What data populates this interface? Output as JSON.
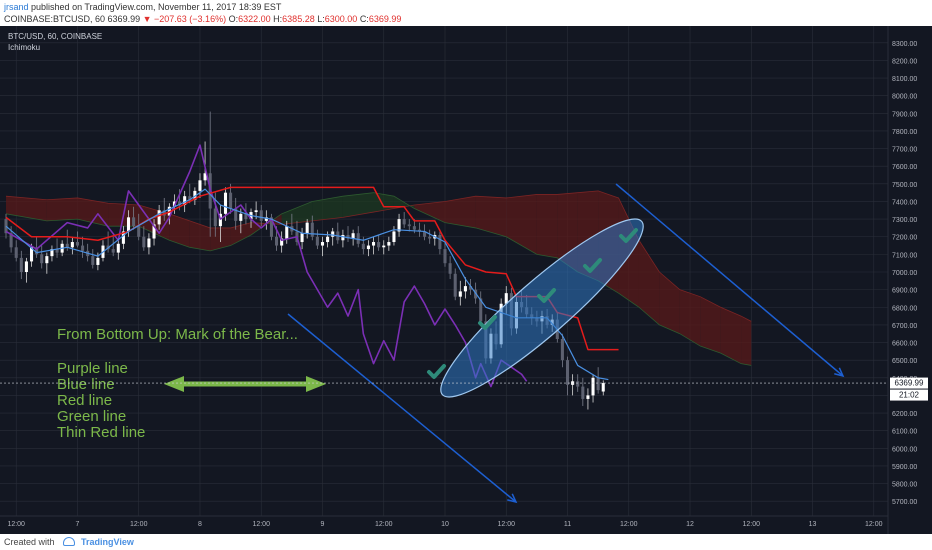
{
  "header": {
    "author": "jrsand",
    "published_text": "published on TradingView.com, November 11, 2017 18:39 EST",
    "symbol": "COINBASE:BTCUSD, 60",
    "last": "6369.99",
    "change": "▼ −207.63 (−3.16%)",
    "open_label": "O:",
    "open_value": "6322.00",
    "high_label": "H:",
    "high_value": "6385.28",
    "low_label": "L:",
    "low_value": "6300.00",
    "close_label": "C:",
    "close_value": "6369.99"
  },
  "legend": {
    "symbol_line": "BTC/USD, 60, COINBASE",
    "indicator": "Ichimoku"
  },
  "annotations": {
    "title": "From Bottom Up: Mark of the Bear...",
    "lines": [
      "Purple line",
      "Blue line",
      "Red line",
      "Green line",
      "Thin Red line"
    ]
  },
  "price_tag": {
    "value": "6369.99",
    "countdown": "21:02"
  },
  "footer": {
    "created_with": "Created with",
    "brand": "TradingView"
  },
  "colors": {
    "background": "#131722",
    "grid": "#2a2e39",
    "tenkan": "#4a90e2",
    "kijun": "#e41c1c",
    "chikou": "#7b2fb5",
    "cloud_bear": "#5a1a1a",
    "cloud_bull": "#1e3a22",
    "annotation_text": "#7cb84a",
    "arrow": "#1d5fd1",
    "ellipse_fill": "#2f78c4",
    "check": "#2e8b7a"
  },
  "chart_data": {
    "type": "candlestick",
    "title": "BTC/USD, 60, COINBASE",
    "indicator": "Ichimoku",
    "xlabel": "",
    "ylabel": "",
    "ylim": [
      5650,
      8350
    ],
    "y_ticks": [
      "8300.00",
      "8200.00",
      "8100.00",
      "8000.00",
      "7900.00",
      "7800.00",
      "7700.00",
      "7600.00",
      "7500.00",
      "7400.00",
      "7300.00",
      "7200.00",
      "7100.00",
      "7000.00",
      "6900.00",
      "6800.00",
      "6700.00",
      "6600.00",
      "6500.00",
      "6400.00",
      "6300.00",
      "6200.00",
      "6100.00",
      "6000.00",
      "5900.00",
      "5800.00",
      "5700.00"
    ],
    "x_ticks": [
      {
        "hour": 0,
        "label": "12:00"
      },
      {
        "hour": 12,
        "label": "7"
      },
      {
        "hour": 24,
        "label": "12:00"
      },
      {
        "hour": 36,
        "label": "8"
      },
      {
        "hour": 48,
        "label": "12:00"
      },
      {
        "hour": 60,
        "label": "9"
      },
      {
        "hour": 72,
        "label": "12:00"
      },
      {
        "hour": 84,
        "label": "10"
      },
      {
        "hour": 96,
        "label": "12:00"
      },
      {
        "hour": 108,
        "label": "11"
      },
      {
        "hour": 120,
        "label": "12:00"
      },
      {
        "hour": 132,
        "label": "12"
      },
      {
        "hour": 144,
        "label": "12:00"
      },
      {
        "hour": 156,
        "label": "13"
      },
      {
        "hour": 168,
        "label": "12:00"
      }
    ],
    "x_domain": [
      -2,
      170
    ],
    "last_price": 6369.99,
    "ohlc": [
      [
        -2,
        7300,
        7330,
        7190,
        7220
      ],
      [
        -1,
        7220,
        7260,
        7110,
        7140
      ],
      [
        0,
        7140,
        7180,
        7060,
        7080
      ],
      [
        1,
        7080,
        7120,
        6960,
        7000
      ],
      [
        2,
        7000,
        7080,
        6940,
        7060
      ],
      [
        3,
        7060,
        7160,
        7030,
        7140
      ],
      [
        4,
        7140,
        7200,
        7080,
        7100
      ],
      [
        5,
        7100,
        7150,
        7020,
        7050
      ],
      [
        6,
        7050,
        7110,
        6990,
        7090
      ],
      [
        7,
        7090,
        7150,
        7060,
        7130
      ],
      [
        8,
        7130,
        7190,
        7080,
        7110
      ],
      [
        9,
        7110,
        7180,
        7090,
        7160
      ],
      [
        10,
        7160,
        7240,
        7120,
        7140
      ],
      [
        11,
        7140,
        7200,
        7100,
        7170
      ],
      [
        12,
        7170,
        7230,
        7140,
        7150
      ],
      [
        13,
        7150,
        7200,
        7080,
        7120
      ],
      [
        14,
        7120,
        7160,
        7060,
        7090
      ],
      [
        15,
        7090,
        7130,
        7020,
        7040
      ],
      [
        16,
        7040,
        7110,
        7010,
        7080
      ],
      [
        17,
        7080,
        7180,
        7060,
        7150
      ],
      [
        18,
        7150,
        7230,
        7110,
        7130
      ],
      [
        19,
        7130,
        7200,
        7090,
        7110
      ],
      [
        20,
        7110,
        7180,
        7070,
        7160
      ],
      [
        21,
        7160,
        7260,
        7130,
        7230
      ],
      [
        22,
        7230,
        7350,
        7200,
        7310
      ],
      [
        23,
        7310,
        7370,
        7240,
        7260
      ],
      [
        24,
        7260,
        7330,
        7180,
        7200
      ],
      [
        25,
        7200,
        7260,
        7120,
        7140
      ],
      [
        26,
        7140,
        7220,
        7100,
        7190
      ],
      [
        27,
        7190,
        7300,
        7150,
        7270
      ],
      [
        28,
        7270,
        7380,
        7240,
        7350
      ],
      [
        29,
        7350,
        7420,
        7290,
        7320
      ],
      [
        30,
        7320,
        7390,
        7270,
        7370
      ],
      [
        31,
        7370,
        7440,
        7330,
        7400
      ],
      [
        32,
        7400,
        7470,
        7350,
        7380
      ],
      [
        33,
        7380,
        7460,
        7340,
        7430
      ],
      [
        34,
        7430,
        7500,
        7390,
        7410
      ],
      [
        35,
        7410,
        7480,
        7380,
        7460
      ],
      [
        36,
        7460,
        7560,
        7420,
        7520
      ],
      [
        37,
        7520,
        7740,
        7490,
        7560
      ],
      [
        38,
        7560,
        7910,
        7200,
        7360
      ],
      [
        39,
        7360,
        7450,
        7200,
        7260
      ],
      [
        40,
        7260,
        7380,
        7170,
        7330
      ],
      [
        41,
        7330,
        7480,
        7290,
        7450
      ],
      [
        42,
        7450,
        7500,
        7330,
        7360
      ],
      [
        43,
        7360,
        7420,
        7240,
        7290
      ],
      [
        44,
        7290,
        7360,
        7220,
        7330
      ],
      [
        45,
        7330,
        7390,
        7270,
        7300
      ],
      [
        46,
        7300,
        7360,
        7250,
        7340
      ],
      [
        47,
        7340,
        7400,
        7300,
        7350
      ],
      [
        48,
        7350,
        7380,
        7260,
        7290
      ],
      [
        49,
        7290,
        7350,
        7240,
        7310
      ],
      [
        50,
        7310,
        7330,
        7180,
        7200
      ],
      [
        51,
        7200,
        7260,
        7120,
        7150
      ],
      [
        52,
        7150,
        7230,
        7110,
        7190
      ],
      [
        53,
        7190,
        7290,
        7160,
        7260
      ],
      [
        54,
        7260,
        7330,
        7210,
        7230
      ],
      [
        55,
        7230,
        7290,
        7150,
        7170
      ],
      [
        56,
        7170,
        7250,
        7130,
        7220
      ],
      [
        57,
        7220,
        7300,
        7190,
        7280
      ],
      [
        58,
        7280,
        7320,
        7180,
        7200
      ],
      [
        59,
        7200,
        7240,
        7130,
        7150
      ],
      [
        60,
        7150,
        7200,
        7090,
        7170
      ],
      [
        61,
        7170,
        7230,
        7140,
        7200
      ],
      [
        62,
        7200,
        7250,
        7150,
        7230
      ],
      [
        63,
        7230,
        7280,
        7160,
        7180
      ],
      [
        64,
        7180,
        7240,
        7140,
        7210
      ],
      [
        65,
        7210,
        7260,
        7170,
        7190
      ],
      [
        66,
        7190,
        7240,
        7150,
        7220
      ],
      [
        67,
        7220,
        7260,
        7140,
        7160
      ],
      [
        68,
        7160,
        7200,
        7100,
        7130
      ],
      [
        69,
        7130,
        7180,
        7090,
        7150
      ],
      [
        70,
        7150,
        7200,
        7100,
        7170
      ],
      [
        71,
        7170,
        7210,
        7120,
        7140
      ],
      [
        72,
        7140,
        7180,
        7100,
        7150
      ],
      [
        73,
        7150,
        7200,
        7120,
        7170
      ],
      [
        74,
        7170,
        7260,
        7150,
        7230
      ],
      [
        75,
        7230,
        7330,
        7200,
        7300
      ],
      [
        76,
        7300,
        7340,
        7250,
        7270
      ],
      [
        77,
        7270,
        7300,
        7230,
        7260
      ],
      [
        78,
        7260,
        7300,
        7220,
        7240
      ],
      [
        79,
        7240,
        7280,
        7200,
        7230
      ],
      [
        80,
        7230,
        7270,
        7180,
        7200
      ],
      [
        81,
        7200,
        7240,
        7160,
        7190
      ],
      [
        82,
        7190,
        7230,
        7150,
        7210
      ],
      [
        83,
        7210,
        7240,
        7100,
        7130
      ],
      [
        84,
        7130,
        7170,
        7030,
        7050
      ],
      [
        85,
        7050,
        7090,
        6960,
        6990
      ],
      [
        86,
        6990,
        7020,
        6840,
        6860
      ],
      [
        87,
        6860,
        6950,
        6810,
        6890
      ],
      [
        88,
        6890,
        6970,
        6850,
        6920
      ],
      [
        89,
        6920,
        6960,
        6870,
        6900
      ],
      [
        90,
        6900,
        6940,
        6820,
        6850
      ],
      [
        91,
        6850,
        6890,
        6700,
        6720
      ],
      [
        92,
        6720,
        6760,
        6480,
        6510
      ],
      [
        93,
        6510,
        6680,
        6480,
        6650
      ],
      [
        94,
        6650,
        6720,
        6560,
        6590
      ],
      [
        95,
        6590,
        6850,
        6570,
        6820
      ],
      [
        96,
        6820,
        6920,
        6760,
        6880
      ],
      [
        97,
        6880,
        6910,
        6640,
        6680
      ],
      [
        98,
        6680,
        6860,
        6650,
        6830
      ],
      [
        99,
        6830,
        6900,
        6770,
        6800
      ],
      [
        100,
        6800,
        6870,
        6740,
        6760
      ],
      [
        101,
        6760,
        6800,
        6700,
        6740
      ],
      [
        102,
        6740,
        6780,
        6690,
        6720
      ],
      [
        103,
        6720,
        6780,
        6650,
        6750
      ],
      [
        104,
        6750,
        6790,
        6680,
        6700
      ],
      [
        105,
        6700,
        6760,
        6660,
        6730
      ],
      [
        106,
        6730,
        6770,
        6600,
        6620
      ],
      [
        107,
        6620,
        6650,
        6460,
        6500
      ],
      [
        108,
        6500,
        6520,
        6300,
        6360
      ],
      [
        109,
        6360,
        6420,
        6300,
        6380
      ],
      [
        110,
        6380,
        6420,
        6320,
        6350
      ],
      [
        111,
        6350,
        6400,
        6240,
        6280
      ],
      [
        112,
        6280,
        6340,
        6220,
        6300
      ],
      [
        113,
        6300,
        6420,
        6260,
        6400
      ],
      [
        114,
        6400,
        6460,
        6310,
        6330
      ],
      [
        115,
        6322,
        6385.28,
        6300,
        6369.99
      ]
    ],
    "tenkan": [
      [
        -2,
        7260
      ],
      [
        4,
        7110
      ],
      [
        10,
        7140
      ],
      [
        16,
        7090
      ],
      [
        22,
        7230
      ],
      [
        28,
        7330
      ],
      [
        34,
        7410
      ],
      [
        37,
        7470
      ],
      [
        40,
        7380
      ],
      [
        46,
        7320
      ],
      [
        50,
        7300
      ],
      [
        56,
        7220
      ],
      [
        62,
        7210
      ],
      [
        68,
        7180
      ],
      [
        74,
        7240
      ],
      [
        80,
        7230
      ],
      [
        84,
        7170
      ],
      [
        88,
        6960
      ],
      [
        92,
        6800
      ],
      [
        98,
        6740
      ],
      [
        104,
        6740
      ],
      [
        107,
        6640
      ],
      [
        110,
        6470
      ],
      [
        114,
        6400
      ],
      [
        116,
        6390
      ]
    ],
    "kijun": [
      [
        -2,
        7310
      ],
      [
        3,
        7200
      ],
      [
        10,
        7200
      ],
      [
        16,
        7180
      ],
      [
        22,
        7230
      ],
      [
        26,
        7300
      ],
      [
        30,
        7340
      ],
      [
        36,
        7430
      ],
      [
        42,
        7480
      ],
      [
        50,
        7480
      ],
      [
        62,
        7480
      ],
      [
        70,
        7480
      ],
      [
        72,
        7370
      ],
      [
        76,
        7370
      ],
      [
        78,
        7290
      ],
      [
        82,
        7290
      ],
      [
        84,
        7180
      ],
      [
        88,
        7040
      ],
      [
        92,
        7000
      ],
      [
        96,
        6990
      ],
      [
        98,
        6860
      ],
      [
        104,
        6860
      ],
      [
        106,
        6770
      ],
      [
        110,
        6740
      ],
      [
        112,
        6560
      ],
      [
        118,
        6560
      ]
    ],
    "chikou": [
      [
        -2,
        7230
      ],
      [
        4,
        7130
      ],
      [
        10,
        7280
      ],
      [
        14,
        7250
      ],
      [
        16,
        7330
      ],
      [
        20,
        7180
      ],
      [
        22,
        7460
      ],
      [
        28,
        7220
      ],
      [
        30,
        7310
      ],
      [
        34,
        7570
      ],
      [
        36,
        7720
      ],
      [
        38,
        7470
      ],
      [
        40,
        7300
      ],
      [
        44,
        7380
      ],
      [
        46,
        7300
      ],
      [
        48,
        7250
      ],
      [
        50,
        7300
      ],
      [
        52,
        7180
      ],
      [
        55,
        7200
      ],
      [
        57,
        7000
      ],
      [
        59,
        6900
      ],
      [
        61,
        6800
      ],
      [
        63,
        6880
      ],
      [
        65,
        6750
      ],
      [
        67,
        6900
      ],
      [
        68,
        6650
      ],
      [
        70,
        6480
      ],
      [
        72,
        6610
      ],
      [
        74,
        6500
      ],
      [
        76,
        6830
      ],
      [
        78,
        6920
      ],
      [
        80,
        6820
      ],
      [
        82,
        6700
      ],
      [
        84,
        6790
      ],
      [
        86,
        6700
      ],
      [
        88,
        6600
      ],
      [
        90,
        6400
      ],
      [
        91,
        6480
      ],
      [
        93,
        6350
      ],
      [
        95,
        6500
      ],
      [
        97,
        6460
      ],
      [
        99,
        6420
      ],
      [
        100,
        6380
      ]
    ],
    "cloud": [
      [
        -2,
        7430,
        7330
      ],
      [
        6,
        7410,
        7290
      ],
      [
        12,
        7420,
        7300
      ],
      [
        18,
        7390,
        7260
      ],
      [
        24,
        7380,
        7260
      ],
      [
        30,
        7330,
        7180
      ],
      [
        34,
        7290,
        7140
      ],
      [
        38,
        7250,
        7120
      ],
      [
        42,
        7250,
        7150
      ],
      [
        46,
        7280,
        7210
      ],
      [
        52,
        7270,
        7330
      ],
      [
        58,
        7290,
        7400
      ],
      [
        64,
        7310,
        7430
      ],
      [
        70,
        7340,
        7450
      ],
      [
        74,
        7360,
        7430
      ],
      [
        78,
        7380,
        7360
      ],
      [
        84,
        7400,
        7280
      ],
      [
        90,
        7430,
        7250
      ],
      [
        96,
        7420,
        7200
      ],
      [
        102,
        7440,
        7100
      ],
      [
        106,
        7440,
        7080
      ],
      [
        110,
        7450,
        7000
      ],
      [
        114,
        7460,
        6950
      ],
      [
        118,
        7420,
        6880
      ],
      [
        122,
        7180,
        6800
      ],
      [
        126,
        7000,
        6700
      ],
      [
        130,
        6900,
        6650
      ],
      [
        134,
        6860,
        6580
      ],
      [
        138,
        6800,
        6540
      ],
      [
        142,
        6750,
        6480
      ],
      [
        144,
        6720,
        6470
      ]
    ]
  }
}
